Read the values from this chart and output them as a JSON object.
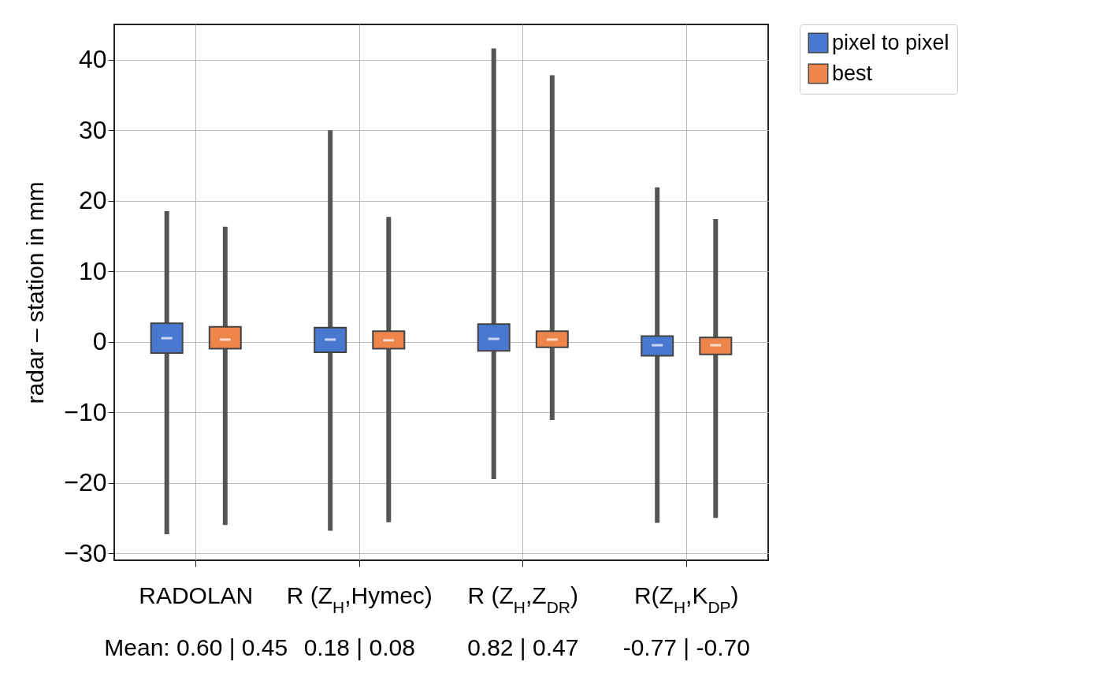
{
  "chart_data": {
    "type": "box",
    "categories": [
      "RADOLAN",
      "R (Z$_{H}$,Hymec)",
      "R (Z$_{H}$,Z$_{DR}$)",
      "R(Z$_{H}$,K$_{DP}$)"
    ],
    "ylabel": "radar – station in mm",
    "ylim": [
      -31,
      45
    ],
    "yticks": [
      -30,
      -20,
      -10,
      0,
      10,
      20,
      30,
      40
    ],
    "grid": true,
    "legend": "top right",
    "series": [
      {
        "name": "pixel to pixel",
        "color": "#4878d0",
        "boxes": [
          {
            "low": -27.3,
            "q1": -1.6,
            "median": 0.5,
            "q3": 2.6,
            "high": 18.5
          },
          {
            "low": -26.8,
            "q1": -1.5,
            "median": 0.3,
            "q3": 2.0,
            "high": 30.0
          },
          {
            "low": -19.5,
            "q1": -1.3,
            "median": 0.4,
            "q3": 2.5,
            "high": 41.6
          },
          {
            "low": -25.7,
            "q1": -2.0,
            "median": -0.5,
            "q3": 0.8,
            "high": 21.9
          }
        ]
      },
      {
        "name": "best",
        "color": "#ee854a",
        "boxes": [
          {
            "low": -26.0,
            "q1": -1.0,
            "median": 0.3,
            "q3": 2.1,
            "high": 16.3
          },
          {
            "low": -25.6,
            "q1": -1.0,
            "median": 0.2,
            "q3": 1.5,
            "high": 17.7
          },
          {
            "low": -11.1,
            "q1": -0.8,
            "median": 0.3,
            "q3": 1.5,
            "high": 37.8
          },
          {
            "low": -25.0,
            "q1": -1.8,
            "median": -0.5,
            "q3": 0.6,
            "high": 17.4
          }
        ]
      }
    ],
    "annotations": [
      "Mean: 0.60 | 0.45",
      "0.18 | 0.08",
      "0.82 | 0.47",
      "-0.77 | -0.70"
    ]
  }
}
